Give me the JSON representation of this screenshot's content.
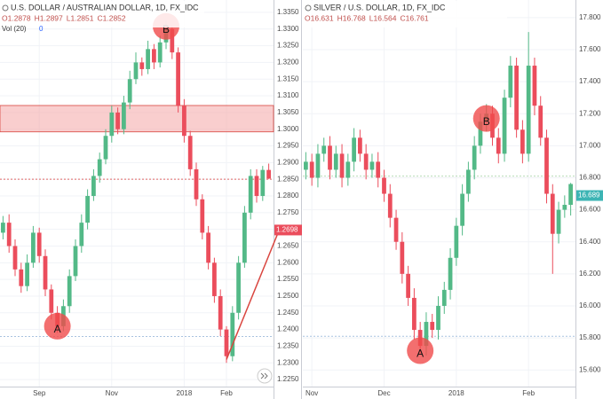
{
  "chart_data": [
    {
      "type": "candlestick",
      "title": "U.S. DOLLAR / AUSTRALIAN DOLLAR, 1D, FX_IDC",
      "ohlc_labels": [
        "O1.2878",
        "H1.2897",
        "L1.2851",
        "C1.2852"
      ],
      "indicator_label": "Vol (20)",
      "indicator_value": "0",
      "up_color": "#53b987",
      "down_color": "#eb4d5c",
      "categories": [
        null,
        null,
        null,
        null,
        null,
        null,
        "Sep",
        null,
        null,
        null,
        null,
        null,
        null,
        null,
        null,
        null,
        null,
        null,
        "Nov",
        null,
        null,
        null,
        null,
        null,
        null,
        null,
        null,
        null,
        null,
        null,
        "2018",
        null,
        null,
        null,
        null,
        null,
        null,
        "Feb",
        null,
        null,
        null,
        null,
        null,
        null,
        null
      ],
      "open": [
        1.269,
        1.272,
        1.265,
        1.258,
        1.253,
        1.26,
        1.269,
        1.262,
        1.252,
        1.245,
        1.241,
        1.247,
        1.256,
        1.265,
        1.272,
        1.28,
        1.286,
        1.291,
        1.298,
        1.305,
        1.3,
        1.308,
        1.315,
        1.32,
        1.318,
        1.324,
        1.32,
        1.326,
        1.33,
        1.323,
        1.307,
        1.298,
        1.288,
        1.279,
        1.269,
        1.26,
        1.25,
        1.24,
        1.232,
        1.245,
        1.26,
        1.275,
        1.286,
        1.28,
        1.2878
      ],
      "high": [
        1.274,
        1.2745,
        1.267,
        1.26,
        1.2625,
        1.271,
        1.2705,
        1.264,
        1.2535,
        1.247,
        1.249,
        1.258,
        1.267,
        1.2745,
        1.282,
        1.288,
        1.293,
        1.3,
        1.307,
        1.3065,
        1.31,
        1.3175,
        1.323,
        1.3215,
        1.3265,
        1.3255,
        1.328,
        1.3325,
        1.331,
        1.3245,
        1.309,
        1.2995,
        1.29,
        1.2805,
        1.271,
        1.2615,
        1.252,
        1.241,
        1.247,
        1.262,
        1.277,
        1.288,
        1.288,
        1.289,
        1.2897
      ],
      "low": [
        1.267,
        1.263,
        1.256,
        1.251,
        1.2515,
        1.2585,
        1.26,
        1.25,
        1.243,
        1.239,
        1.2395,
        1.245,
        1.2545,
        1.263,
        1.27,
        1.2785,
        1.284,
        1.2895,
        1.296,
        1.2985,
        1.2985,
        1.306,
        1.3135,
        1.316,
        1.3165,
        1.318,
        1.3185,
        1.324,
        1.321,
        1.305,
        1.296,
        1.286,
        1.277,
        1.267,
        1.258,
        1.248,
        1.238,
        1.23,
        1.2305,
        1.243,
        1.2585,
        1.273,
        1.278,
        1.2785,
        1.2851
      ],
      "close": [
        1.272,
        1.265,
        1.258,
        1.253,
        1.26,
        1.269,
        1.262,
        1.252,
        1.245,
        1.241,
        1.247,
        1.256,
        1.265,
        1.272,
        1.28,
        1.286,
        1.291,
        1.298,
        1.305,
        1.3,
        1.308,
        1.315,
        1.32,
        1.318,
        1.324,
        1.32,
        1.326,
        1.33,
        1.323,
        1.307,
        1.298,
        1.288,
        1.279,
        1.269,
        1.26,
        1.25,
        1.24,
        1.232,
        1.245,
        1.26,
        1.275,
        1.286,
        1.28,
        1.2878,
        1.2852
      ],
      "ylim": [
        1.2229,
        1.3387
      ],
      "yticks": [
        {
          "value": 1.335,
          "label": "1.3350"
        },
        {
          "value": 1.33,
          "label": "1.3300"
        },
        {
          "value": 1.325,
          "label": "1.3250"
        },
        {
          "value": 1.32,
          "label": "1.3200"
        },
        {
          "value": 1.315,
          "label": "1.3150"
        },
        {
          "value": 1.31,
          "label": "1.3100"
        },
        {
          "value": 1.305,
          "label": "1.3050"
        },
        {
          "value": 1.3,
          "label": "1.3000"
        },
        {
          "value": 1.295,
          "label": "1.2950"
        },
        {
          "value": 1.29,
          "label": "1.2900"
        },
        {
          "value": 1.285,
          "label": "1.2850"
        },
        {
          "value": 1.28,
          "label": "1.2800"
        },
        {
          "value": 1.275,
          "label": "1.2750"
        },
        {
          "value": 1.27,
          "label": "1.2700"
        },
        {
          "value": 1.265,
          "label": "1.2650"
        },
        {
          "value": 1.26,
          "label": "1.2600"
        },
        {
          "value": 1.255,
          "label": "1.2550"
        },
        {
          "value": 1.25,
          "label": "1.2500"
        },
        {
          "value": 1.245,
          "label": "1.2450"
        },
        {
          "value": 1.24,
          "label": "1.2400"
        },
        {
          "value": 1.235,
          "label": "1.2350"
        },
        {
          "value": 1.23,
          "label": "1.2300"
        },
        {
          "value": 1.225,
          "label": "1.2250"
        }
      ],
      "zone": [
        1.2992,
        1.3071
      ],
      "zone_color": "#f4a6a6",
      "levels": [
        {
          "value": 1.2379,
          "color": "#a9c3e0"
        },
        {
          "value": 1.285,
          "color": "#e06666"
        }
      ],
      "trendline": {
        "from_index": 37,
        "from_value": 1.231,
        "to_index": 44,
        "to_value": 1.271,
        "color": "#d9453f"
      },
      "annotations": [
        {
          "label": "A",
          "index": 9,
          "value": 1.241
        },
        {
          "label": "B",
          "index": 27,
          "value": 1.3308
        }
      ],
      "price_tag": 1.2698,
      "price_tag_color": "#eb4d5c"
    },
    {
      "type": "candlestick",
      "title": "SILVER / U.S. DOLLAR, 1D, FX_IDC",
      "ohlc_labels": [
        "O16.631",
        "H16.768",
        "L16.564",
        "C16.761"
      ],
      "up_color": "#53b987",
      "down_color": "#eb4d5c",
      "categories": [
        null,
        "Nov",
        null,
        null,
        null,
        null,
        null,
        null,
        null,
        null,
        null,
        null,
        null,
        "Dec",
        null,
        null,
        null,
        null,
        null,
        null,
        null,
        null,
        null,
        null,
        null,
        "2018",
        null,
        null,
        null,
        null,
        null,
        null,
        null,
        null,
        null,
        null,
        null,
        "Feb",
        null,
        null,
        null,
        null,
        null,
        null,
        null
      ],
      "open": [
        16.85,
        16.9,
        16.8,
        16.95,
        17.0,
        16.85,
        16.95,
        16.8,
        16.9,
        17.05,
        16.95,
        16.85,
        16.9,
        16.8,
        16.7,
        16.55,
        16.4,
        16.2,
        16.05,
        15.85,
        15.75,
        15.9,
        15.85,
        16.0,
        16.1,
        16.3,
        16.5,
        16.7,
        16.85,
        17.0,
        17.15,
        17.2,
        17.05,
        16.95,
        17.3,
        17.5,
        17.1,
        16.95,
        17.5,
        17.25,
        17.05,
        16.7,
        16.45,
        16.6,
        16.631
      ],
      "high": [
        16.96,
        16.95,
        17.01,
        17.05,
        17.06,
        17.0,
        17.01,
        16.95,
        17.11,
        17.1,
        17.01,
        16.95,
        16.96,
        16.85,
        16.76,
        16.6,
        16.46,
        16.25,
        16.11,
        15.9,
        15.96,
        15.95,
        16.06,
        16.15,
        16.36,
        16.55,
        16.76,
        16.9,
        17.06,
        17.2,
        17.26,
        17.25,
        17.11,
        17.35,
        17.56,
        17.55,
        17.16,
        17.71,
        17.55,
        17.31,
        17.1,
        16.76,
        16.65,
        16.69,
        16.768
      ],
      "low": [
        16.79,
        16.75,
        16.74,
        16.9,
        16.79,
        16.8,
        16.74,
        16.75,
        16.84,
        16.9,
        16.79,
        16.8,
        16.74,
        16.65,
        16.49,
        16.35,
        16.14,
        16.0,
        15.79,
        15.7,
        15.69,
        15.8,
        15.79,
        15.95,
        16.04,
        16.25,
        16.44,
        16.65,
        16.79,
        16.95,
        17.09,
        17.0,
        16.89,
        16.9,
        17.24,
        17.05,
        16.89,
        16.9,
        17.19,
        17.0,
        16.64,
        16.2,
        16.39,
        16.55,
        16.564
      ],
      "close": [
        16.9,
        16.8,
        16.95,
        17.0,
        16.85,
        16.95,
        16.8,
        16.9,
        17.05,
        16.95,
        16.85,
        16.9,
        16.8,
        16.7,
        16.55,
        16.4,
        16.2,
        16.05,
        15.85,
        15.75,
        15.9,
        15.85,
        16.0,
        16.1,
        16.3,
        16.5,
        16.7,
        16.85,
        17.0,
        17.15,
        17.2,
        17.05,
        16.95,
        17.3,
        17.5,
        17.1,
        16.95,
        17.5,
        17.25,
        17.05,
        16.7,
        16.45,
        16.6,
        16.631,
        16.761
      ],
      "ylim": [
        15.496,
        17.91
      ],
      "yticks": [
        {
          "value": 17.8,
          "label": "17.800"
        },
        {
          "value": 17.6,
          "label": "17.600"
        },
        {
          "value": 17.4,
          "label": "17.400"
        },
        {
          "value": 17.2,
          "label": "17.200"
        },
        {
          "value": 17.0,
          "label": "17.000"
        },
        {
          "value": 16.8,
          "label": "16.800"
        },
        {
          "value": 16.6,
          "label": "16.600"
        },
        {
          "value": 16.4,
          "label": "16.400"
        },
        {
          "value": 16.2,
          "label": "16.200"
        },
        {
          "value": 16.0,
          "label": "16.000"
        },
        {
          "value": 15.8,
          "label": "15.800"
        },
        {
          "value": 15.6,
          "label": "15.600"
        }
      ],
      "levels": [
        {
          "value": 15.81,
          "color": "#a9c3e0"
        },
        {
          "value": 16.81,
          "color": "#b7dbb7"
        }
      ],
      "annotations": [
        {
          "label": "A",
          "index": 19,
          "value": 15.72
        },
        {
          "label": "B",
          "index": 30,
          "value": 17.17
        }
      ],
      "price_tag": 16.689,
      "price_tag_color": "#3cb4b4"
    }
  ]
}
